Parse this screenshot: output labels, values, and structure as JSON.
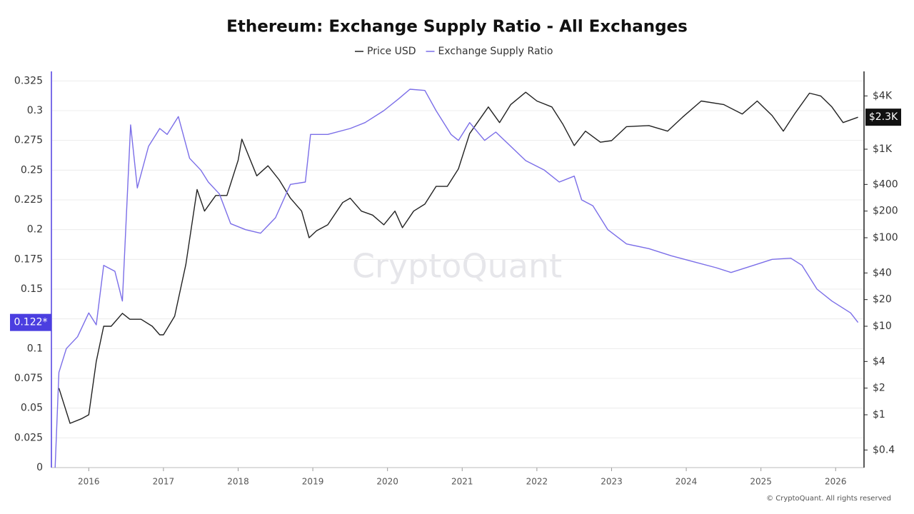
{
  "chart_data": {
    "type": "line",
    "title": "Ethereum: Exchange Supply Ratio - All Exchanges",
    "watermark": "CryptoQuant",
    "copyright": "© CryptoQuant. All rights reserved",
    "xlim": [
      2015.5,
      2026.38
    ],
    "xticks": [
      2016,
      2017,
      2018,
      2019,
      2020,
      2021,
      2022,
      2023,
      2024,
      2025,
      2026
    ],
    "ylim": [
      0,
      0.333
    ],
    "yticks": [
      0,
      0.025,
      0.05,
      0.075,
      0.1,
      0.125,
      0.15,
      0.175,
      0.2,
      0.225,
      0.25,
      0.275,
      0.3,
      0.325
    ],
    "y2lim": [
      0.253,
      7570
    ],
    "y2log": true,
    "y2ticks": [
      {
        "value": 0.4,
        "label": "$0.4"
      },
      {
        "value": 1,
        "label": "$1"
      },
      {
        "value": 2,
        "label": "$2"
      },
      {
        "value": 4,
        "label": "$4"
      },
      {
        "value": 10,
        "label": "$10"
      },
      {
        "value": 20,
        "label": "$20"
      },
      {
        "value": 40,
        "label": "$40"
      },
      {
        "value": 100,
        "label": "$100"
      },
      {
        "value": 200,
        "label": "$200"
      },
      {
        "value": 400,
        "label": "$400"
      },
      {
        "value": 1000,
        "label": "$1K"
      },
      {
        "value": 4000,
        "label": "$4K"
      }
    ],
    "grid": true,
    "series": [
      {
        "name": "Price USD",
        "color": "#222222",
        "axis": "y2",
        "x": [
          2015.6,
          2015.75,
          2015.9,
          2016.0,
          2016.1,
          2016.2,
          2016.3,
          2016.45,
          2016.55,
          2016.7,
          2016.85,
          2016.95,
          2017.0,
          2017.15,
          2017.3,
          2017.45,
          2017.55,
          2017.7,
          2017.85,
          2018.0,
          2018.05,
          2018.25,
          2018.4,
          2018.55,
          2018.7,
          2018.85,
          2018.95,
          2019.05,
          2019.2,
          2019.4,
          2019.5,
          2019.65,
          2019.8,
          2019.95,
          2020.1,
          2020.2,
          2020.35,
          2020.5,
          2020.65,
          2020.8,
          2020.95,
          2021.1,
          2021.35,
          2021.5,
          2021.65,
          2021.85,
          2022.0,
          2022.2,
          2022.35,
          2022.5,
          2022.65,
          2022.85,
          2023.0,
          2023.2,
          2023.5,
          2023.75,
          2023.95,
          2024.2,
          2024.5,
          2024.75,
          2024.95,
          2025.15,
          2025.3,
          2025.45,
          2025.65,
          2025.8,
          2025.95,
          2026.1,
          2026.3
        ],
        "values": [
          2,
          0.8,
          0.9,
          1,
          4,
          10,
          10,
          14,
          12,
          12,
          10,
          8,
          8,
          13,
          50,
          350,
          200,
          300,
          300,
          750,
          1300,
          500,
          650,
          450,
          280,
          200,
          100,
          120,
          140,
          250,
          280,
          200,
          180,
          140,
          200,
          130,
          200,
          240,
          380,
          380,
          600,
          1500,
          3000,
          2000,
          3200,
          4400,
          3500,
          3000,
          1900,
          1100,
          1600,
          1200,
          1250,
          1800,
          1850,
          1600,
          2300,
          3500,
          3200,
          2500,
          3500,
          2400,
          1600,
          2500,
          4300,
          4000,
          3000,
          2000,
          2300
        ]
      },
      {
        "name": "Exchange Supply Ratio",
        "color": "#7b6ee8",
        "x": [
          2015.55,
          2015.6,
          2015.7,
          2015.85,
          2016.0,
          2016.1,
          2016.2,
          2016.35,
          2016.45,
          2016.56,
          2016.65,
          2016.8,
          2016.95,
          2017.05,
          2017.2,
          2017.35,
          2017.5,
          2017.6,
          2017.75,
          2017.9,
          2018.1,
          2018.3,
          2018.5,
          2018.7,
          2018.9,
          2018.97,
          2019.2,
          2019.5,
          2019.7,
          2019.95,
          2020.15,
          2020.3,
          2020.5,
          2020.65,
          2020.85,
          2020.95,
          2021.1,
          2021.3,
          2021.45,
          2021.65,
          2021.85,
          2022.1,
          2022.3,
          2022.5,
          2022.6,
          2022.75,
          2022.95,
          2023.2,
          2023.5,
          2023.8,
          2024.1,
          2024.4,
          2024.6,
          2024.9,
          2025.15,
          2025.4,
          2025.55,
          2025.75,
          2025.95,
          2026.2,
          2026.3
        ],
        "values": [
          0,
          0.08,
          0.1,
          0.11,
          0.13,
          0.12,
          0.17,
          0.165,
          0.14,
          0.288,
          0.235,
          0.27,
          0.285,
          0.28,
          0.295,
          0.26,
          0.25,
          0.24,
          0.23,
          0.205,
          0.2,
          0.197,
          0.21,
          0.238,
          0.24,
          0.28,
          0.28,
          0.285,
          0.29,
          0.3,
          0.31,
          0.318,
          0.317,
          0.3,
          0.28,
          0.275,
          0.29,
          0.275,
          0.282,
          0.27,
          0.258,
          0.25,
          0.24,
          0.245,
          0.225,
          0.22,
          0.2,
          0.188,
          0.184,
          0.178,
          0.173,
          0.168,
          0.164,
          0.17,
          0.175,
          0.176,
          0.17,
          0.15,
          0.14,
          0.13,
          0.122
        ]
      }
    ],
    "last_value_labels": [
      {
        "value": 0.122,
        "label": "0.122*"
      },
      {
        "value": 2300,
        "label": "$2.3K"
      }
    ]
  }
}
